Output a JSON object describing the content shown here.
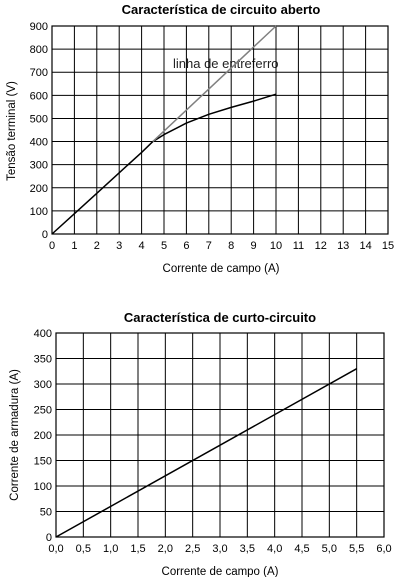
{
  "chart_data": [
    {
      "type": "line",
      "title": "Característica de circuito aberto",
      "xlabel": "Corrente de campo (A)",
      "ylabel": "Tensão terminal (V)",
      "xlim": [
        0,
        15
      ],
      "ylim": [
        0,
        900
      ],
      "x_ticks": [
        "0",
        "1",
        "2",
        "3",
        "4",
        "5",
        "6",
        "7",
        "8",
        "9",
        "10",
        "11",
        "12",
        "13",
        "14",
        "15"
      ],
      "y_ticks": [
        "0",
        "100",
        "200",
        "300",
        "400",
        "500",
        "600",
        "700",
        "800",
        "900"
      ],
      "grid": true,
      "annotations": [
        {
          "text": "linha de entreferro"
        }
      ],
      "series": [
        {
          "color": "#000000",
          "style": "solid",
          "x": [
            0,
            1,
            2,
            3,
            4,
            4.5,
            5,
            6,
            7,
            8,
            9,
            10
          ],
          "y": [
            0,
            88,
            176,
            265,
            353,
            400,
            430,
            480,
            518,
            548,
            575,
            605
          ]
        },
        {
          "name": "linha de entreferro",
          "color": "#808080",
          "style": "solid",
          "x": [
            4.5,
            10
          ],
          "y": [
            400,
            900
          ]
        }
      ]
    },
    {
      "type": "line",
      "title": "Característica de curto-circuito",
      "xlabel": "Corrente de campo (A)",
      "ylabel": "Corrente de armadura (A)",
      "xlim": [
        0,
        6
      ],
      "ylim": [
        0,
        400
      ],
      "x_ticks": [
        "0,0",
        "0,5",
        "1,0",
        "1,5",
        "2,0",
        "2,5",
        "3,0",
        "3,5",
        "4,0",
        "4,5",
        "5,0",
        "5,5",
        "6,0"
      ],
      "y_ticks": [
        "0",
        "50",
        "100",
        "150",
        "200",
        "250",
        "300",
        "350",
        "400"
      ],
      "grid": true,
      "series": [
        {
          "color": "#000000",
          "style": "solid",
          "x": [
            0,
            5.5
          ],
          "y": [
            0,
            330
          ]
        }
      ]
    }
  ]
}
